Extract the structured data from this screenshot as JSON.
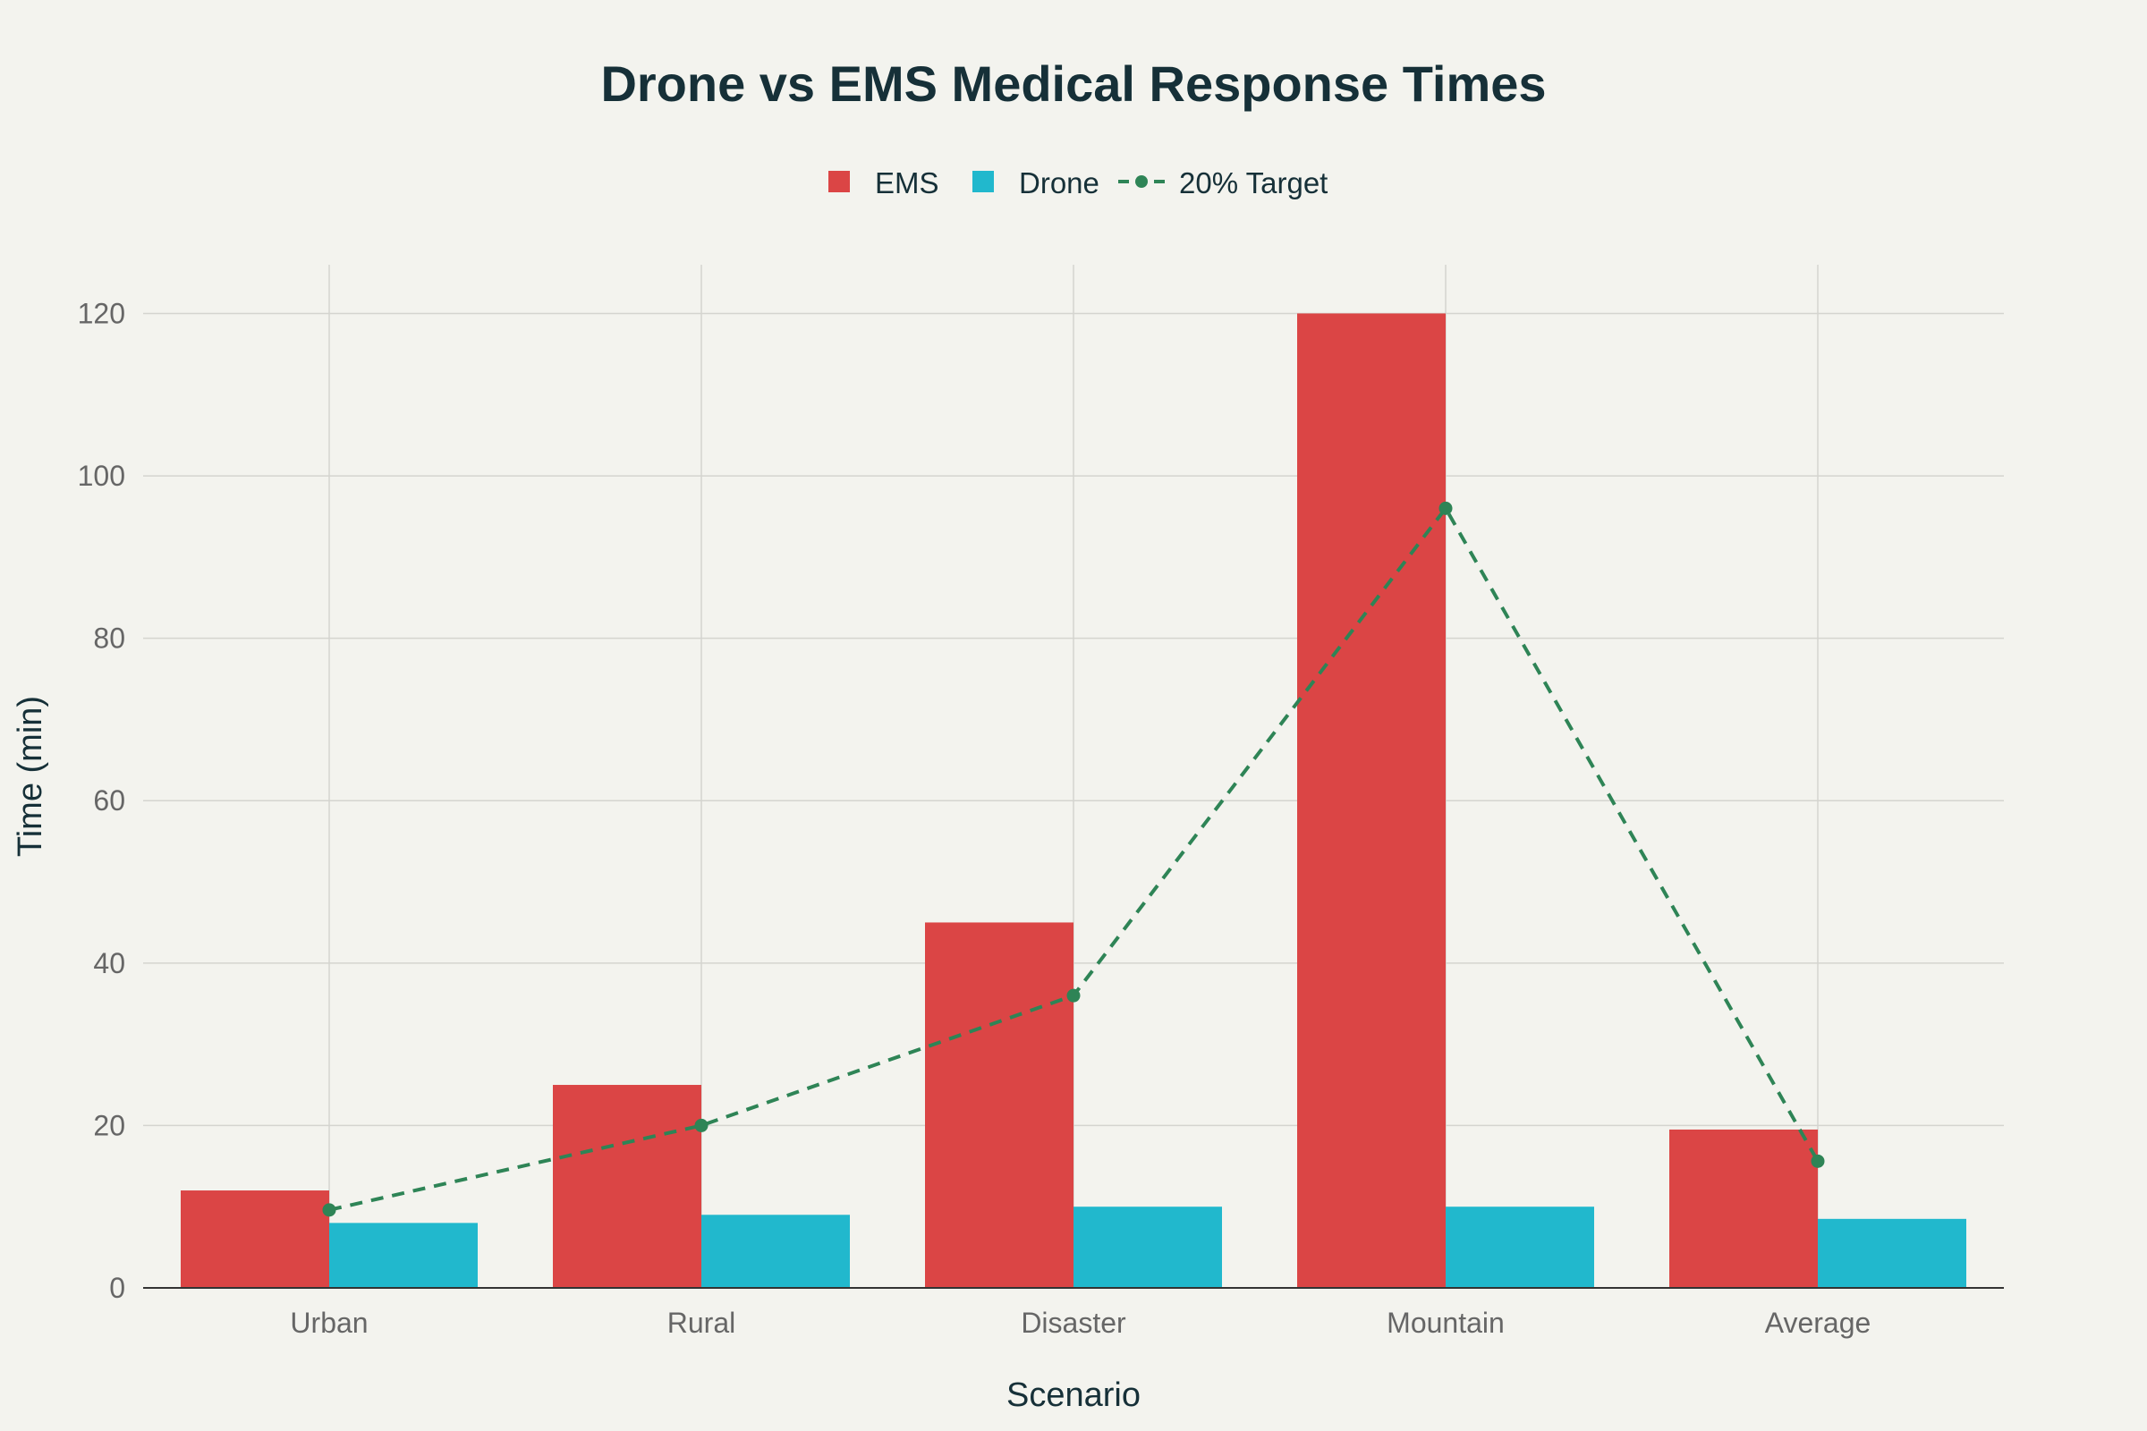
{
  "chart_data": {
    "type": "bar",
    "title": "Drone vs EMS Medical Response Times",
    "xlabel": "Scenario",
    "ylabel": "Time (min)",
    "categories": [
      "Urban",
      "Rural",
      "Disaster",
      "Mountain",
      "Average"
    ],
    "ylim": [
      0,
      126
    ],
    "yticks": [
      0,
      20,
      40,
      60,
      80,
      100,
      120
    ],
    "grid": true,
    "legend_position": "top-center",
    "series": [
      {
        "name": "EMS",
        "type": "bar",
        "color": "#db4545",
        "values": [
          12,
          25,
          45,
          120,
          19.5
        ]
      },
      {
        "name": "Drone",
        "type": "bar",
        "color": "#21b8cd",
        "values": [
          8,
          9,
          10,
          10,
          8.5
        ]
      },
      {
        "name": "20% Target",
        "type": "line",
        "style": "dashed",
        "marker": "circle",
        "color": "#2e8456",
        "values": [
          9.6,
          20,
          36,
          96,
          15.6
        ]
      }
    ]
  }
}
